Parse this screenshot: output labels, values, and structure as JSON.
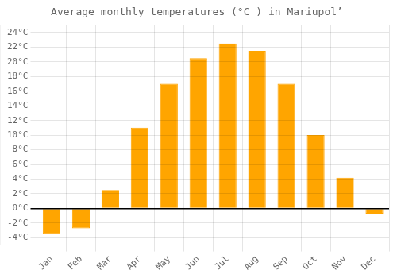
{
  "chart_data": {
    "type": "bar",
    "title": "Average monthly temperatures (°C ) in Mariupol’",
    "categories": [
      "Jan",
      "Feb",
      "Mar",
      "Apr",
      "May",
      "Jun",
      "Jul",
      "Aug",
      "Sep",
      "Oct",
      "Nov",
      "Dec"
    ],
    "values": [
      -3.5,
      -2.7,
      2.5,
      11.0,
      17.0,
      20.5,
      22.5,
      21.5,
      17.0,
      10.0,
      4.2,
      -0.7
    ],
    "color": "#FFA500",
    "ylim": [
      -5,
      25
    ],
    "yticks": [
      {
        "value": -4,
        "label": "-4°C"
      },
      {
        "value": -2,
        "label": "-2°C"
      },
      {
        "value": 0,
        "label": "0°C"
      },
      {
        "value": 2,
        "label": "2°C"
      },
      {
        "value": 4,
        "label": "4°C"
      },
      {
        "value": 6,
        "label": "6°C"
      },
      {
        "value": 8,
        "label": "8°C"
      },
      {
        "value": 10,
        "label": "10°C"
      },
      {
        "value": 12,
        "label": "12°C"
      },
      {
        "value": 14,
        "label": "14°C"
      },
      {
        "value": 16,
        "label": "16°C"
      },
      {
        "value": 18,
        "label": "18°C"
      },
      {
        "value": 20,
        "label": "20°C"
      },
      {
        "value": 22,
        "label": "22°C"
      },
      {
        "value": 24,
        "label": "24°C"
      }
    ],
    "grid": true
  }
}
